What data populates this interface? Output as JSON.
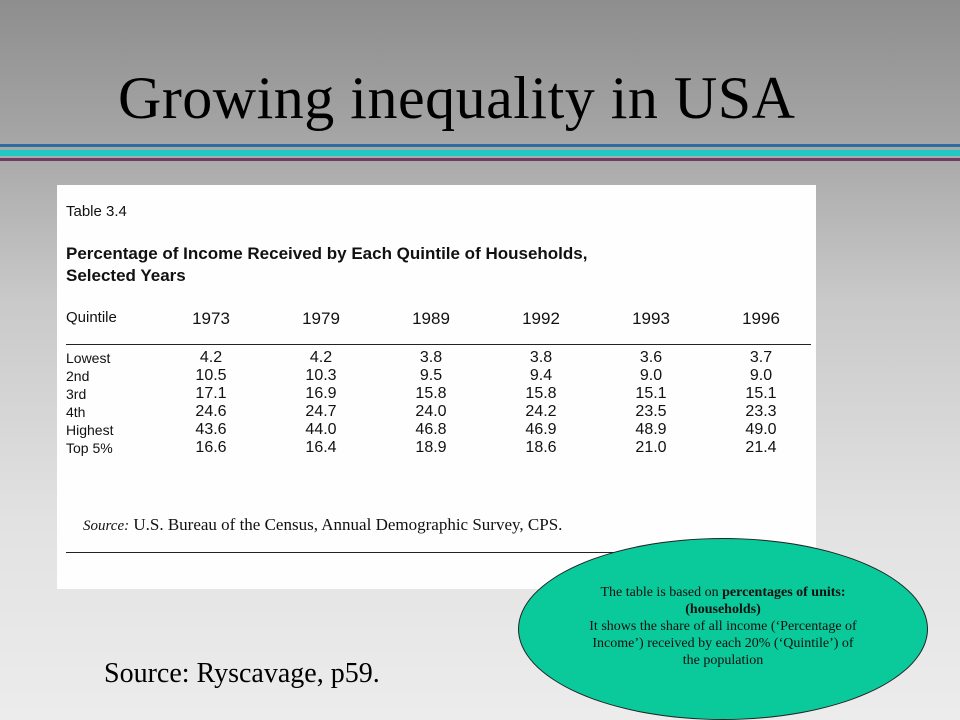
{
  "slide": {
    "title": "Growing inequality in USA",
    "caption": "Source: Ryscavage, p59."
  },
  "colors": {
    "divider_top": "#2a6fa0",
    "divider_mid": "#1fc9c1",
    "divider_bottom": "#6b3c63",
    "callout_fill": "#0ac99a"
  },
  "scan": {
    "table_number": "Table 3.4",
    "title_line1": "Percentage of Income Received by Each Quintile of Households,",
    "title_line2": "Selected Years",
    "header": {
      "quintile": "Quintile",
      "years": [
        "1973",
        "1979",
        "1989",
        "1992",
        "1993",
        "1996"
      ]
    },
    "rows": [
      {
        "label": "Lowest",
        "values": [
          "4.2",
          "4.2",
          "3.8",
          "3.8",
          "3.6",
          "3.7"
        ]
      },
      {
        "label": "2nd",
        "values": [
          "10.5",
          "10.3",
          "9.5",
          "9.4",
          "9.0",
          "9.0"
        ]
      },
      {
        "label": "3rd",
        "values": [
          "17.1",
          "16.9",
          "15.8",
          "15.8",
          "15.1",
          "15.1"
        ]
      },
      {
        "label": "4th",
        "values": [
          "24.6",
          "24.7",
          "24.0",
          "24.2",
          "23.5",
          "23.3"
        ]
      },
      {
        "label": "Highest",
        "values": [
          "43.6",
          "44.0",
          "46.8",
          "46.9",
          "48.9",
          "49.0"
        ]
      },
      {
        "label": "Top 5%",
        "values": [
          "16.6",
          "16.4",
          "18.9",
          "18.6",
          "21.0",
          "21.4"
        ]
      }
    ],
    "source_label": "Source:",
    "source_text": "U.S. Bureau of the Census, Annual Demographic Survey, CPS."
  },
  "callout": {
    "line1_pre": "The table is based on ",
    "line1_bold": "percentages of units: (households)",
    "line2": "It shows the share of all income (‘Percentage of Income’) received by each 20% (‘Quintile’) of the population"
  }
}
